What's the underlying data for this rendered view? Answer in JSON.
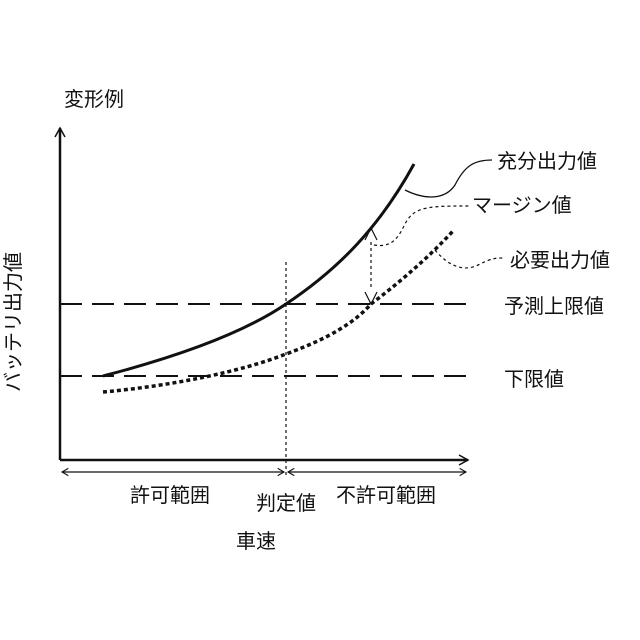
{
  "figure_label": "変形例",
  "axes": {
    "y_label": "バッテリ出力値",
    "x_label": "車速"
  },
  "curves": {
    "sufficient": "充分出力値",
    "required": "必要出力値",
    "margin": "マージン値"
  },
  "thresholds": {
    "predicted_upper": "予測上限値",
    "lower": "下限値"
  },
  "regions": {
    "allowed": "許可範囲",
    "judgment": "判定値",
    "not_allowed": "不許可範囲"
  },
  "colors": {
    "ink": "#111111",
    "background": "#ffffff"
  }
}
